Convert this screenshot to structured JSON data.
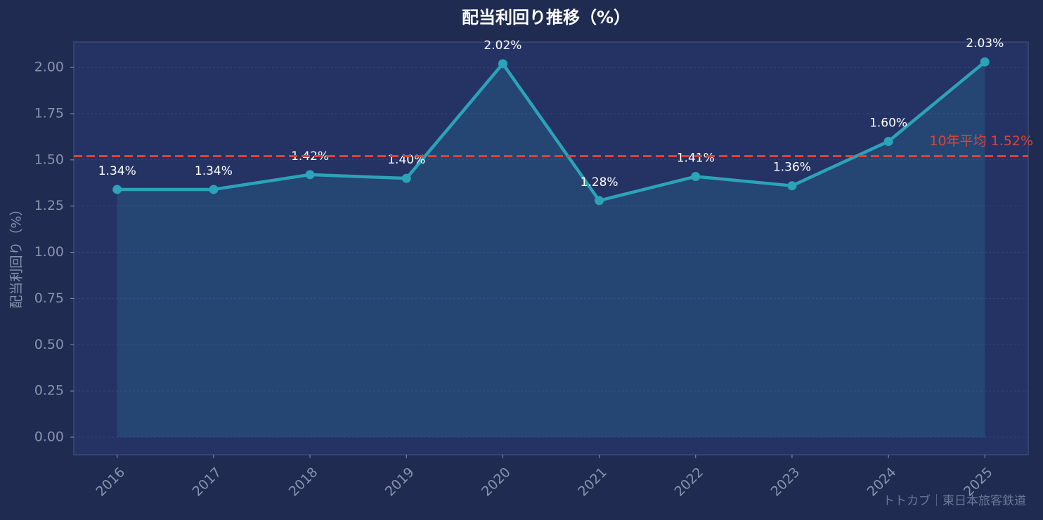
{
  "chart_data": {
    "type": "line",
    "title": "配当利回り推移（%）",
    "y_label": "配当利回り（%）",
    "watermark": "トトカブ｜東日本旅客鉄道",
    "categories": [
      "2016",
      "2017",
      "2018",
      "2019",
      "2020",
      "2021",
      "2022",
      "2023",
      "2024",
      "2025"
    ],
    "series": [
      {
        "color": "#2ba3b8",
        "values": [
          1.34,
          1.34,
          1.42,
          1.4,
          2.02,
          1.28,
          1.41,
          1.36,
          1.6,
          2.03
        ],
        "value_labels": [
          "1.34%",
          "1.34%",
          "1.42%",
          "1.40%",
          "2.02%",
          "1.28%",
          "1.41%",
          "1.36%",
          "1.60%",
          "2.03%"
        ]
      }
    ],
    "average": {
      "value": 1.52,
      "label": "10年平均 1.52%",
      "color": "#d9443a"
    },
    "ylim": [
      -0.095,
      2.137
    ],
    "yticks": [
      {
        "value": 0,
        "label": "0.00"
      },
      0.25,
      {
        "value": 0.5,
        "label": "0.50"
      },
      0.75,
      {
        "value": 1,
        "label": "1.00"
      },
      1.25,
      {
        "value": 1.5,
        "label": "1.50"
      },
      1.75,
      {
        "value": 2,
        "label": "2.00"
      }
    ],
    "grid": true
  }
}
